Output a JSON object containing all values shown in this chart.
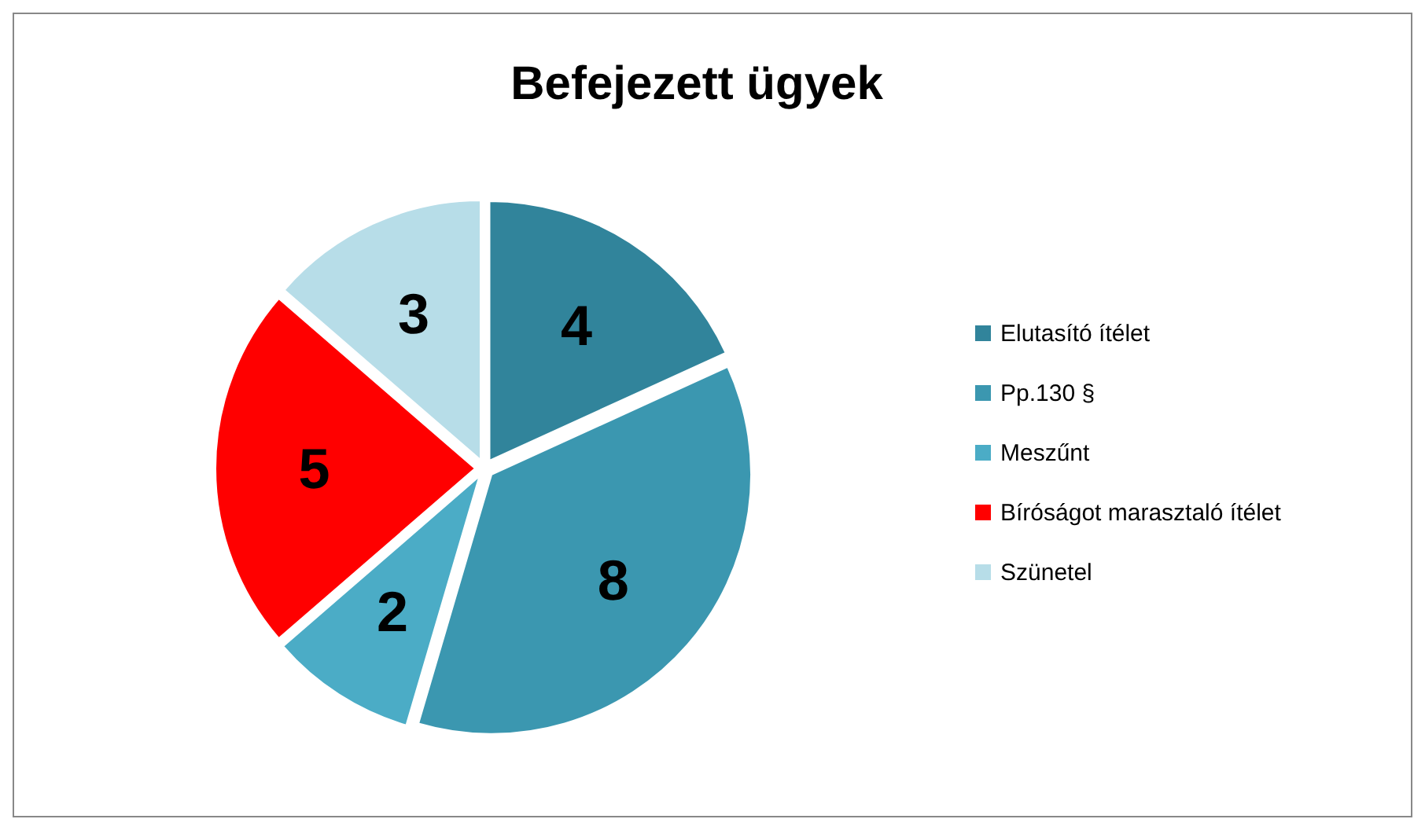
{
  "chart_data": {
    "type": "pie",
    "title": "Befejezett ügyek",
    "categories": [
      "Elutasító ítélet",
      "Pp.130 §",
      "Meszűnt",
      "Bíróságot marasztaló ítélet",
      "Szünetel"
    ],
    "values": [
      4,
      8,
      2,
      5,
      3
    ],
    "colors": [
      "#31849b",
      "#3b97b0",
      "#4bacc6",
      "#ff0000",
      "#b7dde8"
    ],
    "data_labels": true,
    "legend": "right"
  }
}
